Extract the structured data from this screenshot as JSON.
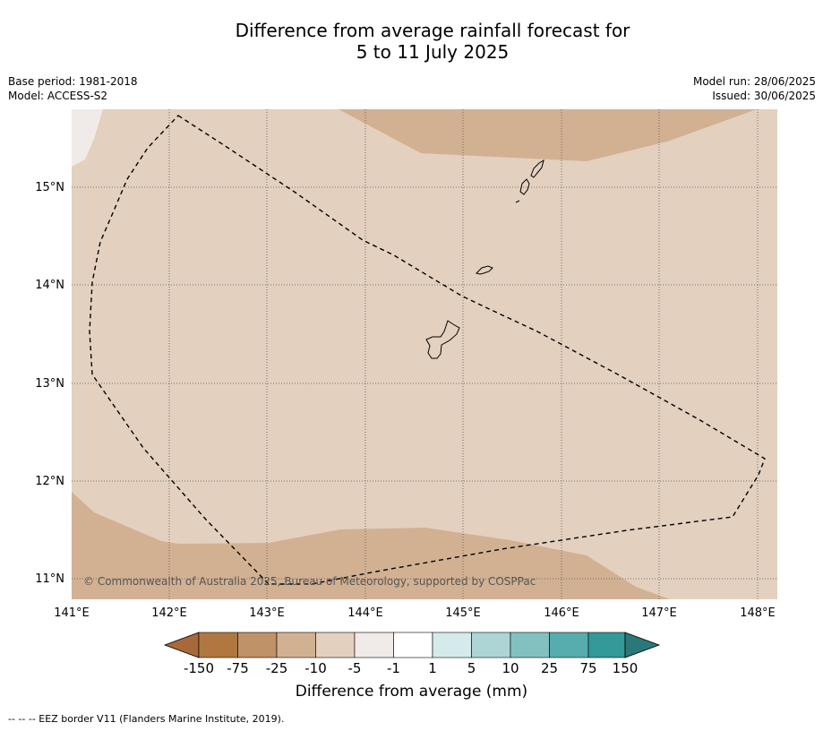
{
  "title": {
    "line1": "Difference from average rainfall forecast for",
    "line2": "5 to 11 July 2025"
  },
  "meta": {
    "base_period": "Base period: 1981-2018",
    "model": "Model: ACCESS-S2",
    "model_run": "Model run: 28/06/2025",
    "issued": "Issued: 30/06/2025"
  },
  "map": {
    "lon_ticks": [
      "141°E",
      "142°E",
      "143°E",
      "144°E",
      "145°E",
      "146°E",
      "147°E",
      "148°E"
    ],
    "lat_ticks": [
      "15°N",
      "14°N",
      "13°N",
      "12°N",
      "11°N"
    ],
    "copyright": "© Commonwealth of Australia 2025, Bureau of Meteorology, supported by COSPPac",
    "category_colors": {
      "-75 to -25": "#bf9268",
      "-25 to -10": "#d2b192",
      "-10 to -5": "#e3d0bf",
      "-5 to -1": "#f0ebe8"
    }
  },
  "colorbar": {
    "label": "Difference from average (mm)",
    "ticks": [
      "-150",
      "-75",
      "-25",
      "-10",
      "-5",
      "-1",
      "1",
      "5",
      "10",
      "25",
      "75",
      "150"
    ],
    "colors": [
      "#a8693a",
      "#b07840",
      "#bf9268",
      "#d2b192",
      "#e3d0bf",
      "#f0ebe8",
      "#ffffff",
      "#d5eaea",
      "#add5d5",
      "#83c1c1",
      "#57adad",
      "#339999",
      "#2a7878"
    ]
  },
  "footnote": "--  --  -- EEZ border V11 (Flanders Marine Institute, 2019)."
}
